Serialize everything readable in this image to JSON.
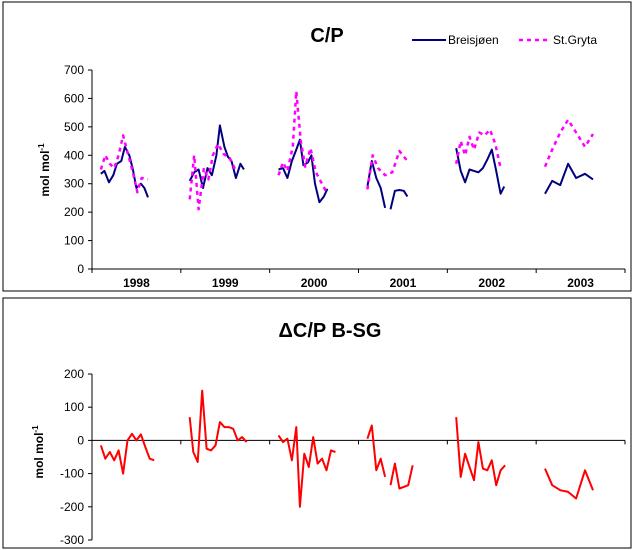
{
  "chart_data": [
    {
      "type": "line",
      "title": "C/P",
      "ylabel_main": "mol mol",
      "ylabel_sup": "-1",
      "ylim": [
        0,
        700
      ],
      "yticks": [
        0,
        100,
        200,
        300,
        400,
        500,
        600,
        700
      ],
      "categories": [
        "1998",
        "1999",
        "2000",
        "2001",
        "2002",
        "2003"
      ],
      "xlim": [
        1998,
        2004
      ],
      "grid": false,
      "legend_placement": "top-right",
      "series": [
        {
          "name": "Breisjøen",
          "color": "#000080",
          "style": "solid",
          "segments": [
            [
              [
                1998.1,
                335
              ],
              [
                1998.14,
                345
              ],
              [
                1998.19,
                305
              ],
              [
                1998.24,
                330
              ],
              [
                1998.28,
                370
              ],
              [
                1998.33,
                380
              ],
              [
                1998.37,
                430
              ],
              [
                1998.42,
                400
              ],
              [
                1998.46,
                350
              ],
              [
                1998.5,
                285
              ],
              [
                1998.55,
                300
              ],
              [
                1998.59,
                285
              ],
              [
                1998.63,
                252
              ]
            ],
            [
              [
                1999.1,
                310
              ],
              [
                1999.15,
                340
              ],
              [
                1999.2,
                350
              ],
              [
                1999.25,
                285
              ],
              [
                1999.3,
                355
              ],
              [
                1999.35,
                330
              ],
              [
                1999.4,
                400
              ],
              [
                1999.44,
                505
              ],
              [
                1999.49,
                430
              ],
              [
                1999.53,
                395
              ],
              [
                1999.57,
                380
              ],
              [
                1999.62,
                320
              ],
              [
                1999.67,
                370
              ],
              [
                1999.71,
                350
              ]
            ],
            [
              [
                2000.1,
                350
              ],
              [
                2000.15,
                355
              ],
              [
                2000.2,
                320
              ],
              [
                2000.25,
                380
              ],
              [
                2000.3,
                420
              ],
              [
                2000.34,
                455
              ],
              [
                2000.38,
                365
              ],
              [
                2000.43,
                375
              ],
              [
                2000.47,
                400
              ],
              [
                2000.51,
                300
              ],
              [
                2000.56,
                235
              ],
              [
                2000.61,
                255
              ],
              [
                2000.65,
                282
              ]
            ],
            [
              [
                2001.1,
                290
              ],
              [
                2001.15,
                380
              ],
              [
                2001.2,
                320
              ],
              [
                2001.25,
                285
              ],
              [
                2001.3,
                215
              ]
            ],
            [
              [
                2001.36,
                210
              ],
              [
                2001.41,
                275
              ],
              [
                2001.46,
                278
              ],
              [
                2001.51,
                275
              ],
              [
                2001.55,
                255
              ]
            ],
            [
              [
                2002.1,
                425
              ],
              [
                2002.15,
                345
              ],
              [
                2002.2,
                305
              ],
              [
                2002.25,
                350
              ],
              [
                2002.3,
                345
              ],
              [
                2002.35,
                340
              ],
              [
                2002.4,
                355
              ],
              [
                2002.45,
                385
              ],
              [
                2002.5,
                420
              ],
              [
                2002.55,
                345
              ],
              [
                2002.6,
                265
              ],
              [
                2002.64,
                290
              ]
            ],
            [
              [
                2003.1,
                265
              ],
              [
                2003.18,
                310
              ],
              [
                2003.27,
                295
              ],
              [
                2003.36,
                370
              ],
              [
                2003.45,
                320
              ],
              [
                2003.55,
                335
              ],
              [
                2003.64,
                315
              ]
            ]
          ]
        },
        {
          "name": "St.Gryta",
          "color": "#ff00ff",
          "style": "dotted",
          "segments": [
            [
              [
                1998.1,
                350
              ],
              [
                1998.15,
                400
              ],
              [
                1998.2,
                370
              ],
              [
                1998.25,
                355
              ],
              [
                1998.3,
                400
              ],
              [
                1998.35,
                470
              ],
              [
                1998.4,
                410
              ],
              [
                1998.46,
                340
              ],
              [
                1998.51,
                270
              ],
              [
                1998.56,
                320
              ],
              [
                1998.63,
                315
              ]
            ],
            [
              [
                1999.1,
                245
              ],
              [
                1999.15,
                400
              ],
              [
                1999.2,
                210
              ],
              [
                1999.26,
                355
              ],
              [
                1999.31,
                315
              ],
              [
                1999.36,
                400
              ],
              [
                1999.42,
                440
              ],
              [
                1999.48,
                405
              ],
              [
                1999.55,
                390
              ],
              [
                1999.62,
                345
              ]
            ],
            [
              [
                2000.1,
                330
              ],
              [
                2000.15,
                375
              ],
              [
                2000.2,
                345
              ],
              [
                2000.26,
                430
              ],
              [
                2000.3,
                625
              ],
              [
                2000.35,
                450
              ],
              [
                2000.4,
                360
              ],
              [
                2000.46,
                425
              ],
              [
                2000.52,
                340
              ],
              [
                2000.58,
                305
              ],
              [
                2000.64,
                270
              ]
            ],
            [
              [
                2001.1,
                280
              ],
              [
                2001.16,
                400
              ],
              [
                2001.22,
                355
              ],
              [
                2001.3,
                330
              ],
              [
                2001.38,
                340
              ],
              [
                2001.46,
                415
              ],
              [
                2001.55,
                380
              ]
            ],
            [
              [
                2002.1,
                370
              ],
              [
                2002.15,
                450
              ],
              [
                2002.2,
                400
              ],
              [
                2002.25,
                465
              ],
              [
                2002.3,
                420
              ],
              [
                2002.36,
                480
              ],
              [
                2002.42,
                470
              ],
              [
                2002.48,
                490
              ],
              [
                2002.54,
                440
              ],
              [
                2002.6,
                355
              ]
            ],
            [
              [
                2003.1,
                360
              ],
              [
                2003.18,
                420
              ],
              [
                2003.27,
                480
              ],
              [
                2003.36,
                525
              ],
              [
                2003.45,
                480
              ],
              [
                2003.55,
                430
              ],
              [
                2003.64,
                475
              ]
            ]
          ]
        }
      ]
    },
    {
      "type": "line",
      "title": "ΔC/P B-SG",
      "ylabel_main": "mol mol",
      "ylabel_sup": "-1",
      "ylim": [
        -300,
        200
      ],
      "yticks": [
        -300,
        -200,
        -100,
        0,
        100,
        200
      ],
      "xlim": [
        1998,
        2004
      ],
      "grid": false,
      "series": [
        {
          "name": "",
          "color": "#ff0000",
          "style": "solid",
          "segments": [
            [
              [
                1998.1,
                -15
              ],
              [
                1998.15,
                -55
              ],
              [
                1998.2,
                -35
              ],
              [
                1998.25,
                -60
              ],
              [
                1998.3,
                -30
              ],
              [
                1998.35,
                -100
              ],
              [
                1998.4,
                0
              ],
              [
                1998.45,
                20
              ],
              [
                1998.5,
                0
              ],
              [
                1998.55,
                18
              ],
              [
                1998.6,
                -20
              ],
              [
                1998.65,
                -55
              ],
              [
                1998.7,
                -60
              ]
            ],
            [
              [
                1999.1,
                70
              ],
              [
                1999.14,
                -35
              ],
              [
                1999.19,
                -65
              ],
              [
                1999.24,
                150
              ],
              [
                1999.29,
                -25
              ],
              [
                1999.34,
                -30
              ],
              [
                1999.39,
                -15
              ],
              [
                1999.44,
                55
              ],
              [
                1999.49,
                40
              ],
              [
                1999.54,
                40
              ],
              [
                1999.59,
                35
              ],
              [
                1999.64,
                0
              ],
              [
                1999.69,
                10
              ],
              [
                1999.74,
                -5
              ]
            ],
            [
              [
                2000.1,
                15
              ],
              [
                2000.15,
                -5
              ],
              [
                2000.2,
                5
              ],
              [
                2000.25,
                -60
              ],
              [
                2000.3,
                40
              ],
              [
                2000.34,
                -200
              ],
              [
                2000.39,
                -40
              ],
              [
                2000.44,
                -80
              ],
              [
                2000.49,
                10
              ],
              [
                2000.54,
                -70
              ],
              [
                2000.59,
                -55
              ],
              [
                2000.64,
                -90
              ],
              [
                2000.69,
                -30
              ],
              [
                2000.74,
                -35
              ]
            ],
            [
              [
                2001.1,
                5
              ],
              [
                2001.15,
                45
              ],
              [
                2001.2,
                -90
              ],
              [
                2001.25,
                -55
              ],
              [
                2001.3,
                -110
              ]
            ],
            [
              [
                2001.36,
                -135
              ],
              [
                2001.41,
                -70
              ],
              [
                2001.46,
                -145
              ],
              [
                2001.51,
                -140
              ],
              [
                2001.56,
                -135
              ],
              [
                2001.61,
                -75
              ]
            ],
            [
              [
                2002.1,
                70
              ],
              [
                2002.15,
                -110
              ],
              [
                2002.2,
                -40
              ],
              [
                2002.25,
                -80
              ],
              [
                2002.3,
                -120
              ],
              [
                2002.35,
                -5
              ],
              [
                2002.4,
                -85
              ],
              [
                2002.45,
                -90
              ],
              [
                2002.5,
                -60
              ],
              [
                2002.55,
                -135
              ],
              [
                2002.6,
                -90
              ],
              [
                2002.65,
                -75
              ]
            ],
            [
              [
                2003.1,
                -85
              ],
              [
                2003.18,
                -135
              ],
              [
                2003.27,
                -150
              ],
              [
                2003.36,
                -155
              ],
              [
                2003.45,
                -175
              ],
              [
                2003.55,
                -90
              ],
              [
                2003.64,
                -150
              ]
            ]
          ]
        }
      ]
    }
  ]
}
